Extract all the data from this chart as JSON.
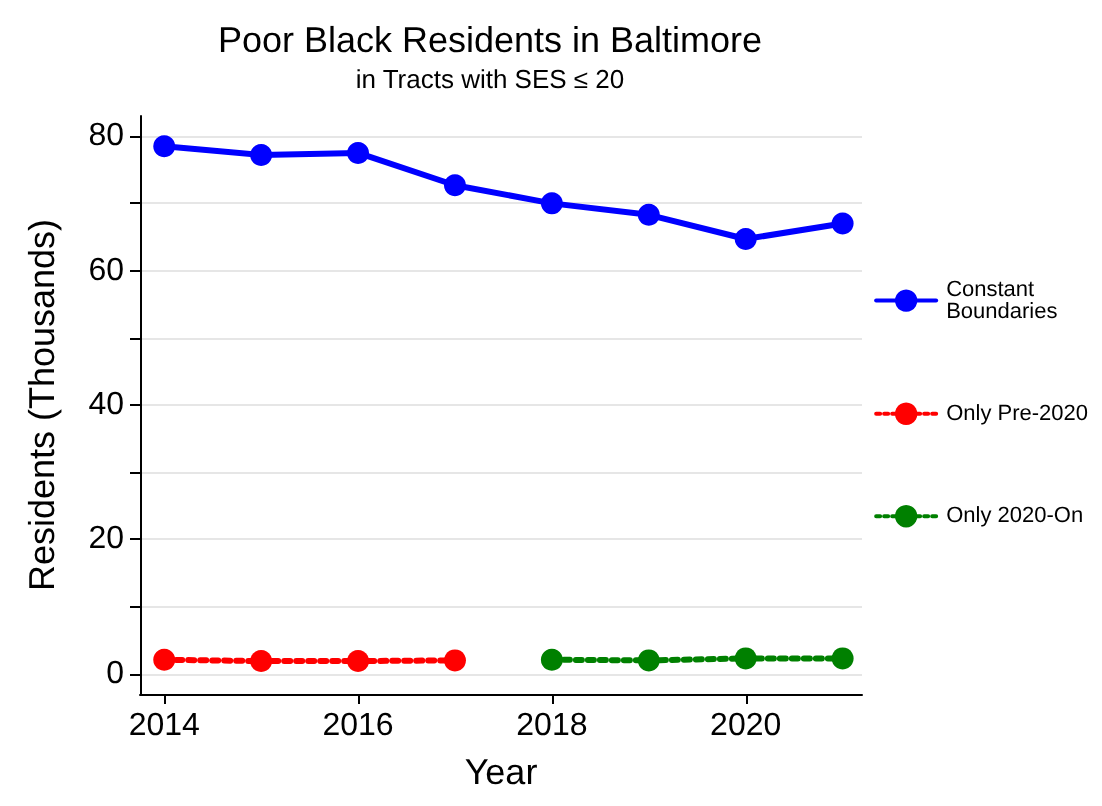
{
  "chart_data": {
    "type": "line",
    "title": "Poor Black Residents in Baltimore",
    "subtitle": "in Tracts with SES ≤ 20",
    "xlabel": "Year",
    "ylabel": "Residents (Thousands)",
    "xlim": [
      2013.75,
      2021.2
    ],
    "xticks": [
      2014,
      2016,
      2018,
      2020
    ],
    "ylim": [
      -3,
      83
    ],
    "yticks": [
      0,
      {
        "value": 10,
        "label": null
      },
      20,
      {
        "value": 30,
        "label": null
      },
      40,
      {
        "value": 50,
        "label": null
      },
      60,
      {
        "value": 70,
        "label": null
      },
      80
    ],
    "grid": "y",
    "legend": "right",
    "marker": "circle",
    "series": [
      {
        "name": "Constant Boundaries",
        "color": "#0000ff",
        "line_style": "solid",
        "x": [
          2014,
          2015,
          2016,
          2017,
          2018,
          2019,
          2020,
          2021
        ],
        "values": [
          78.5,
          77.2,
          77.5,
          72.7,
          70.0,
          68.3,
          64.7,
          67.0
        ]
      },
      {
        "name": "Only Pre-2020",
        "color": "#ff0000",
        "line_style": "dotted",
        "x": [
          2014,
          2015,
          2016,
          2017
        ],
        "values": [
          2.1,
          1.9,
          1.9,
          2.0
        ]
      },
      {
        "name": "Only 2020-On",
        "color": "#008000",
        "line_style": "dotted",
        "x": [
          2018,
          2019,
          2020,
          2021
        ],
        "values": [
          2.1,
          2.0,
          2.3,
          2.3
        ]
      }
    ]
  }
}
